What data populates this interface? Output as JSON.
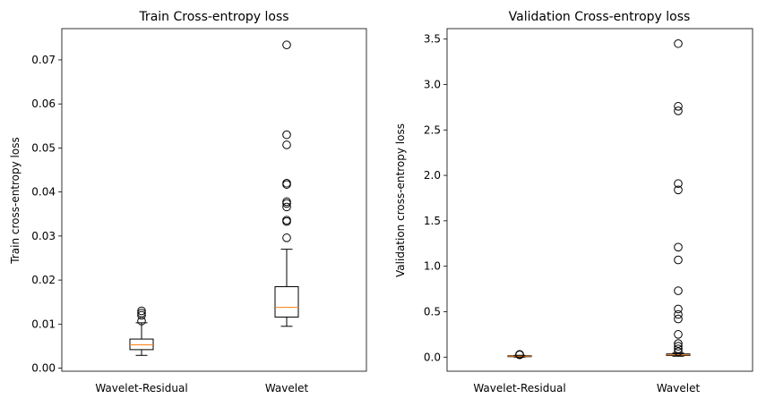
{
  "chart_data": [
    {
      "type": "box",
      "title": "Train Cross-entropy loss",
      "xlabel": "",
      "ylabel": "Train cross-entropy loss",
      "categories": [
        "Wavelet-Residual",
        "Wavelet"
      ],
      "ylim": [
        -0.0007,
        0.0771
      ],
      "yticks": [
        0.0,
        0.01,
        0.02,
        0.03,
        0.04,
        0.05,
        0.06,
        0.07
      ],
      "ytick_labels": [
        "0.00",
        "0.01",
        "0.02",
        "0.03",
        "0.04",
        "0.05",
        "0.06",
        "0.07"
      ],
      "boxes": [
        {
          "category": "Wavelet-Residual",
          "whisker_low": 0.0029,
          "q1": 0.0042,
          "median": 0.0053,
          "q3": 0.0066,
          "whisker_high": 0.0103,
          "outliers": [
            0.0107,
            0.012,
            0.0125,
            0.013
          ]
        },
        {
          "category": "Wavelet",
          "whisker_low": 0.0095,
          "q1": 0.0116,
          "median": 0.0138,
          "q3": 0.0185,
          "whisker_high": 0.027,
          "outliers": [
            0.0296,
            0.0333,
            0.0336,
            0.0366,
            0.0374,
            0.0378,
            0.0417,
            0.042,
            0.0507,
            0.053,
            0.0734
          ]
        }
      ]
    },
    {
      "type": "box",
      "title": "Validation Cross-entropy loss",
      "xlabel": "",
      "ylabel": "Validation cross-entropy loss",
      "categories": [
        "Wavelet-Residual",
        "Wavelet"
      ],
      "ylim": [
        -0.155,
        3.615
      ],
      "yticks": [
        0.0,
        0.5,
        1.0,
        1.5,
        2.0,
        2.5,
        3.0,
        3.5
      ],
      "ytick_labels": [
        "0.0",
        "0.5",
        "1.0",
        "1.5",
        "2.0",
        "2.5",
        "3.0",
        "3.5"
      ],
      "boxes": [
        {
          "category": "Wavelet-Residual",
          "whisker_low": 0.0,
          "q1": 0.005,
          "median": 0.01,
          "q3": 0.015,
          "whisker_high": 0.02,
          "outliers": [
            0.025,
            0.03
          ]
        },
        {
          "category": "Wavelet",
          "whisker_low": 0.01,
          "q1": 0.018,
          "median": 0.025,
          "q3": 0.035,
          "whisker_high": 0.045,
          "outliers": [
            0.06,
            0.09,
            0.12,
            0.15,
            0.25,
            0.42,
            0.47,
            0.53,
            0.73,
            1.07,
            1.21,
            1.84,
            1.91,
            2.71,
            2.76,
            3.45
          ]
        }
      ]
    }
  ],
  "colors": {
    "box": "#000000",
    "median": "#ff7f0e",
    "background": "#ffffff"
  }
}
